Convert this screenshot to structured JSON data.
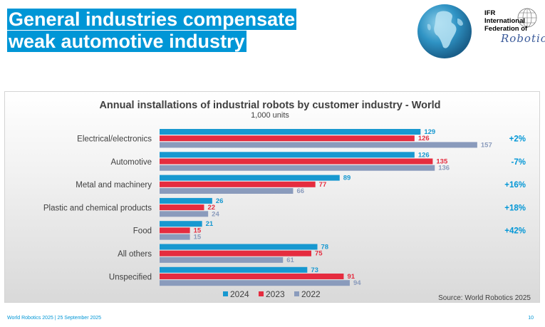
{
  "header": {
    "title_line1": "General industries compensate",
    "title_line2": "weak automotive industry"
  },
  "logo": {
    "line1": "IFR",
    "line2": "International",
    "line3": "Federation of",
    "script": "Robotics"
  },
  "chart_data": {
    "type": "bar",
    "orientation": "horizontal",
    "title": "Annual installations of industrial robots by customer industry - World",
    "subtitle": "1,000 units",
    "categories": [
      "Electrical/electronics",
      "Automotive",
      "Metal and machinery",
      "Plastic and chemical products",
      "Food",
      "All others",
      "Unspecified"
    ],
    "series": [
      {
        "name": "2024",
        "color": "#1798d0",
        "values": [
          129,
          126,
          89,
          26,
          21,
          78,
          73
        ]
      },
      {
        "name": "2023",
        "color": "#e52c3f",
        "values": [
          126,
          135,
          77,
          22,
          15,
          75,
          91
        ]
      },
      {
        "name": "2022",
        "color": "#8a9bbc",
        "values": [
          157,
          136,
          66,
          24,
          15,
          61,
          94
        ]
      }
    ],
    "growth": [
      "+2%",
      "-7%",
      "+16%",
      "+18%",
      "+42%"
    ],
    "growth_color": "#0096d6",
    "legend_position": "bottom",
    "source": "Source: World Robotics 2025"
  },
  "footer": {
    "left": "World Robotics 2025  | 25 September 2025",
    "page_number": "10"
  }
}
